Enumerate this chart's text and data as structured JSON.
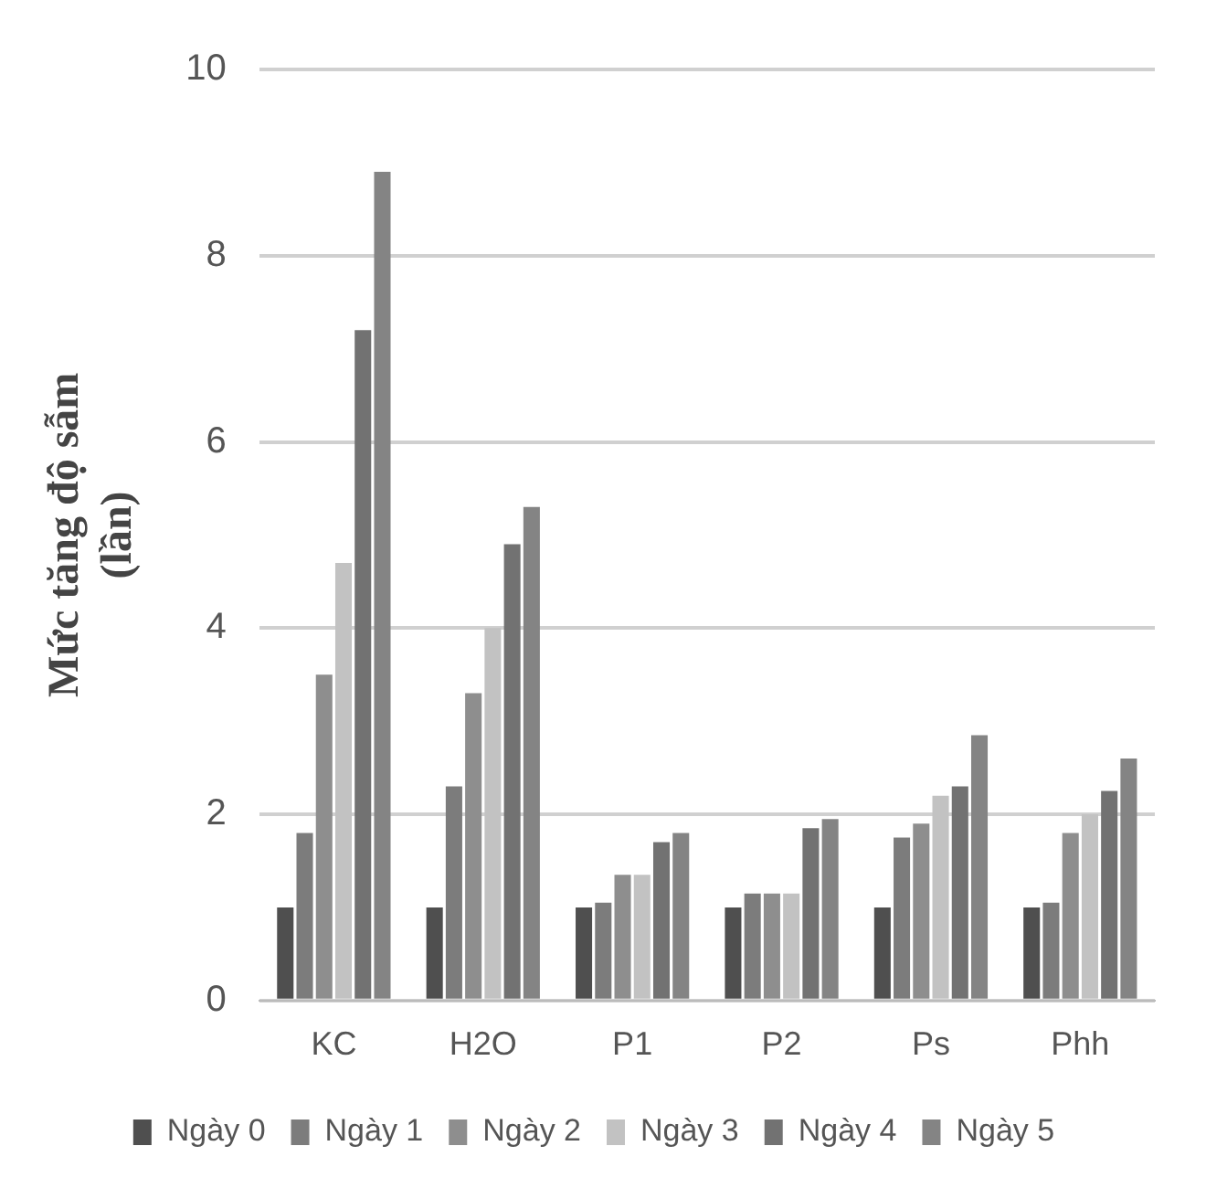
{
  "chart_data": {
    "type": "bar",
    "ylabel": "Mức tăng độ sẫm (lần)",
    "categories": [
      "KC",
      "H2O",
      "P1",
      "P2",
      "Ps",
      "Phh"
    ],
    "series": [
      {
        "name": "Ngày 0",
        "color": "#4f4f4f",
        "values": [
          1.0,
          1.0,
          1.0,
          1.0,
          1.0,
          1.0
        ]
      },
      {
        "name": "Ngày 1",
        "color": "#7c7c7c",
        "values": [
          1.8,
          2.3,
          1.05,
          1.15,
          1.75,
          1.05
        ]
      },
      {
        "name": "Ngày 2",
        "color": "#8e8e8e",
        "values": [
          3.5,
          3.3,
          1.35,
          1.15,
          1.9,
          1.8
        ]
      },
      {
        "name": "Ngày 3",
        "color": "#c2c2c2",
        "values": [
          4.7,
          4.0,
          1.35,
          1.15,
          2.2,
          2.0
        ]
      },
      {
        "name": "Ngày 4",
        "color": "#727272",
        "values": [
          7.2,
          4.9,
          1.7,
          1.85,
          2.3,
          2.25
        ]
      },
      {
        "name": "Ngày 5",
        "color": "#848484",
        "values": [
          8.9,
          5.3,
          1.8,
          1.95,
          2.85,
          2.6
        ]
      }
    ],
    "ylim": [
      0,
      10
    ],
    "yticks": [
      0,
      2,
      4,
      6,
      8,
      10
    ],
    "grid": "y",
    "legend": "bottom"
  }
}
